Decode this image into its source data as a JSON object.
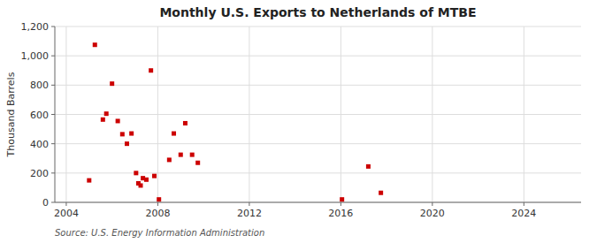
{
  "chart_data": {
    "type": "scatter",
    "title": "Monthly U.S. Exports to Netherlands of MTBE",
    "ylabel": "Thousand Barrels",
    "source": "Source: U.S. Energy Information Administration",
    "color": "#cc0000",
    "marker": "square",
    "grid": true,
    "xlim": [
      2003.5,
      2026.5
    ],
    "ylim": [
      0,
      1200
    ],
    "xticks": [
      2004,
      2008,
      2012,
      2016,
      2020,
      2024
    ],
    "yticks": [
      0,
      200,
      400,
      600,
      800,
      {
        "value": 1000,
        "label": "1,000"
      },
      {
        "value": 1200,
        "label": "1,200"
      }
    ],
    "x": [
      2005.0,
      2005.25,
      2005.6,
      2005.75,
      2006.0,
      2006.25,
      2006.45,
      2006.65,
      2006.85,
      2007.05,
      2007.15,
      2007.25,
      2007.35,
      2007.5,
      2007.7,
      2007.85,
      2008.05,
      2008.5,
      2008.7,
      2009.0,
      2009.2,
      2009.5,
      2009.75,
      2016.05,
      2017.2,
      2017.75
    ],
    "values": [
      150,
      1075,
      565,
      605,
      810,
      555,
      465,
      400,
      470,
      200,
      130,
      115,
      165,
      155,
      900,
      180,
      20,
      290,
      470,
      325,
      540,
      325,
      270,
      20,
      245,
      65
    ]
  }
}
